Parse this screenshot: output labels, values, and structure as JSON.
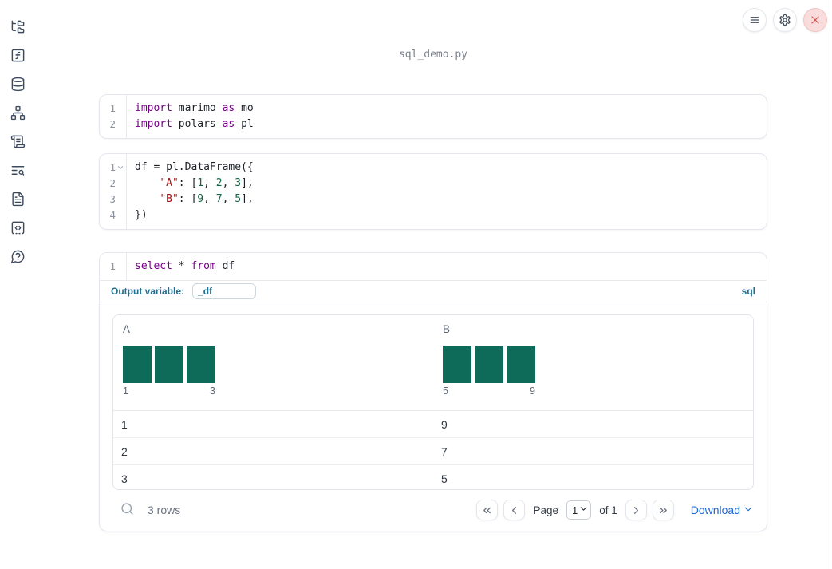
{
  "header": {
    "filename": "sql_demo.py"
  },
  "toolbar": {
    "buttons": [
      {
        "name": "notebook-menu",
        "icon": "menu"
      },
      {
        "name": "settings",
        "icon": "settings"
      },
      {
        "name": "shutdown",
        "icon": "close"
      }
    ]
  },
  "sidebar": {
    "items": [
      {
        "name": "file-explorer",
        "icon": "folder-tree"
      },
      {
        "name": "variables",
        "icon": "function-square"
      },
      {
        "name": "data-sources",
        "icon": "database"
      },
      {
        "name": "dependency-graph",
        "icon": "network"
      },
      {
        "name": "logs",
        "icon": "scroll-text"
      },
      {
        "name": "outline",
        "icon": "text-search"
      },
      {
        "name": "documentation",
        "icon": "file-text"
      },
      {
        "name": "snippets",
        "icon": "code-square"
      },
      {
        "name": "help",
        "icon": "help-bubble"
      }
    ]
  },
  "cells": [
    {
      "type": "python",
      "lines": [
        {
          "number": "1",
          "fold": false,
          "tokens": [
            {
              "text": "import",
              "style": "kw"
            },
            {
              "text": " marimo ",
              "style": "plain"
            },
            {
              "text": "as",
              "style": "kw"
            },
            {
              "text": " mo",
              "style": "plain"
            }
          ]
        },
        {
          "number": "2",
          "fold": false,
          "tokens": [
            {
              "text": "import",
              "style": "kw"
            },
            {
              "text": " polars ",
              "style": "plain"
            },
            {
              "text": "as",
              "style": "kw"
            },
            {
              "text": " pl",
              "style": "plain"
            }
          ]
        }
      ]
    },
    {
      "type": "python",
      "lines": [
        {
          "number": "1",
          "fold": true,
          "tokens": [
            {
              "text": "df = pl.DataFrame({",
              "style": "plain"
            }
          ]
        },
        {
          "number": "2",
          "fold": false,
          "tokens": [
            {
              "text": "    ",
              "style": "plain"
            },
            {
              "text": "\"A\"",
              "style": "str"
            },
            {
              "text": ": [",
              "style": "plain"
            },
            {
              "text": "1",
              "style": "num"
            },
            {
              "text": ", ",
              "style": "plain"
            },
            {
              "text": "2",
              "style": "num"
            },
            {
              "text": ", ",
              "style": "plain"
            },
            {
              "text": "3",
              "style": "num"
            },
            {
              "text": "],",
              "style": "plain"
            }
          ]
        },
        {
          "number": "3",
          "fold": false,
          "tokens": [
            {
              "text": "    ",
              "style": "plain"
            },
            {
              "text": "\"B\"",
              "style": "str"
            },
            {
              "text": ": [",
              "style": "plain"
            },
            {
              "text": "9",
              "style": "num"
            },
            {
              "text": ", ",
              "style": "plain"
            },
            {
              "text": "7",
              "style": "num"
            },
            {
              "text": ", ",
              "style": "plain"
            },
            {
              "text": "5",
              "style": "num"
            },
            {
              "text": "],",
              "style": "plain"
            }
          ]
        },
        {
          "number": "4",
          "fold": false,
          "tokens": [
            {
              "text": "})",
              "style": "plain"
            }
          ]
        }
      ]
    },
    {
      "type": "sql",
      "lines": [
        {
          "number": "1",
          "fold": false,
          "tokens": [
            {
              "text": "select",
              "style": "kw"
            },
            {
              "text": " * ",
              "style": "plain"
            },
            {
              "text": "from",
              "style": "kw"
            },
            {
              "text": " df",
              "style": "plain"
            }
          ]
        }
      ],
      "output_variable_label": "Output variable:",
      "output_variable_value": "_df",
      "language_badge": "sql"
    }
  ],
  "table": {
    "columns": [
      {
        "name": "A",
        "histogram": {
          "bars": [
            1,
            1,
            1
          ],
          "min_label": "1",
          "max_label": "3"
        }
      },
      {
        "name": "B",
        "histogram": {
          "bars": [
            1,
            1,
            1
          ],
          "min_label": "5",
          "max_label": "9"
        }
      }
    ],
    "rows": [
      [
        "1",
        "9"
      ],
      [
        "2",
        "7"
      ],
      [
        "3",
        "5"
      ]
    ],
    "footer": {
      "search_icon": "search",
      "row_count": "3 rows",
      "page_label": "Page",
      "page_value": "1",
      "of_label": "of 1",
      "pager": [
        {
          "name": "first-page",
          "icon": "chevrons-left"
        },
        {
          "name": "prev-page",
          "icon": "chevron-left"
        },
        {
          "name": "next-page",
          "icon": "chevron-right"
        },
        {
          "name": "last-page",
          "icon": "chevrons-right"
        }
      ],
      "download_label": "Download",
      "download_icon": "chevron-down",
      "page_select_icon": "chevron-down"
    }
  },
  "colors": {
    "histogram_bar": "#0E6B5A",
    "keyword": "#770088",
    "string": "#AA1111",
    "number": "#116644",
    "sql_accent": "#20708F",
    "link_blue": "#2168D8",
    "close_red": "#D4504E"
  }
}
